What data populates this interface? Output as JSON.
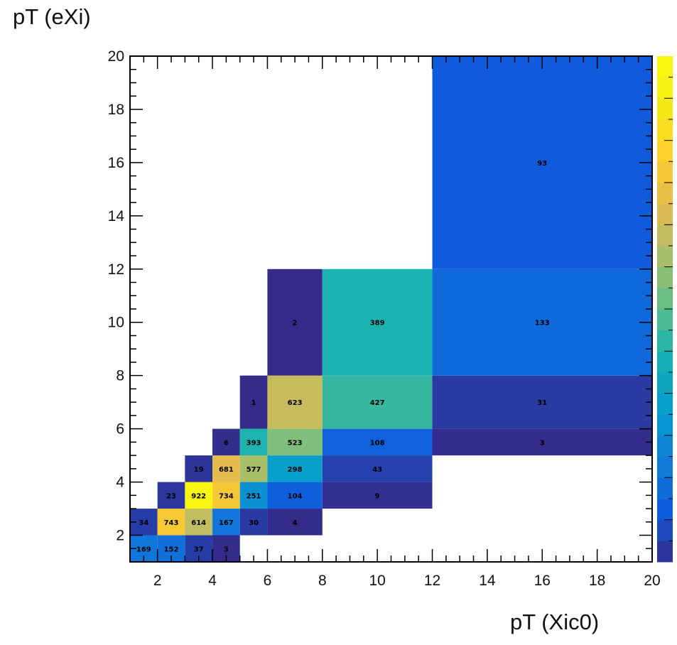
{
  "chart_data": {
    "type": "heatmap",
    "title": "",
    "xlabel": "pT (Xic0)",
    "ylabel": "pT (eXi)",
    "xlim": [
      1,
      20
    ],
    "ylim": [
      1,
      20
    ],
    "x_ticks": [
      2,
      4,
      6,
      8,
      10,
      12,
      14,
      16,
      18,
      20
    ],
    "y_ticks": [
      2,
      4,
      6,
      8,
      10,
      12,
      14,
      16,
      18,
      20
    ],
    "color_scale": {
      "min": 0,
      "max": 950,
      "palette": "parula"
    },
    "cells": [
      {
        "x0": 1,
        "x1": 2,
        "y0": 1,
        "y1": 2,
        "value": 169
      },
      {
        "x0": 2,
        "x1": 3,
        "y0": 1,
        "y1": 2,
        "value": 152
      },
      {
        "x0": 3,
        "x1": 4,
        "y0": 1,
        "y1": 2,
        "value": 37
      },
      {
        "x0": 4,
        "x1": 5,
        "y0": 1,
        "y1": 2,
        "value": 3
      },
      {
        "x0": 1,
        "x1": 2,
        "y0": 2,
        "y1": 3,
        "value": 34
      },
      {
        "x0": 2,
        "x1": 3,
        "y0": 2,
        "y1": 3,
        "value": 743
      },
      {
        "x0": 3,
        "x1": 4,
        "y0": 2,
        "y1": 3,
        "value": 614
      },
      {
        "x0": 4,
        "x1": 5,
        "y0": 2,
        "y1": 3,
        "value": 167
      },
      {
        "x0": 5,
        "x1": 6,
        "y0": 2,
        "y1": 3,
        "value": 30
      },
      {
        "x0": 6,
        "x1": 8,
        "y0": 2,
        "y1": 3,
        "value": 4
      },
      {
        "x0": 2,
        "x1": 3,
        "y0": 3,
        "y1": 4,
        "value": 23
      },
      {
        "x0": 3,
        "x1": 4,
        "y0": 3,
        "y1": 4,
        "value": 922
      },
      {
        "x0": 4,
        "x1": 5,
        "y0": 3,
        "y1": 4,
        "value": 734
      },
      {
        "x0": 5,
        "x1": 6,
        "y0": 3,
        "y1": 4,
        "value": 251
      },
      {
        "x0": 6,
        "x1": 8,
        "y0": 3,
        "y1": 4,
        "value": 104
      },
      {
        "x0": 8,
        "x1": 12,
        "y0": 3,
        "y1": 4,
        "value": 9
      },
      {
        "x0": 3,
        "x1": 4,
        "y0": 4,
        "y1": 5,
        "value": 19
      },
      {
        "x0": 4,
        "x1": 5,
        "y0": 4,
        "y1": 5,
        "value": 681
      },
      {
        "x0": 5,
        "x1": 6,
        "y0": 4,
        "y1": 5,
        "value": 577
      },
      {
        "x0": 6,
        "x1": 8,
        "y0": 4,
        "y1": 5,
        "value": 298
      },
      {
        "x0": 8,
        "x1": 12,
        "y0": 4,
        "y1": 5,
        "value": 43
      },
      {
        "x0": 4,
        "x1": 5,
        "y0": 5,
        "y1": 6,
        "value": 6
      },
      {
        "x0": 5,
        "x1": 6,
        "y0": 5,
        "y1": 6,
        "value": 393
      },
      {
        "x0": 6,
        "x1": 8,
        "y0": 5,
        "y1": 6,
        "value": 523
      },
      {
        "x0": 8,
        "x1": 12,
        "y0": 5,
        "y1": 6,
        "value": 108
      },
      {
        "x0": 12,
        "x1": 20,
        "y0": 5,
        "y1": 6,
        "value": 3
      },
      {
        "x0": 5,
        "x1": 6,
        "y0": 6,
        "y1": 8,
        "value": 1
      },
      {
        "x0": 6,
        "x1": 8,
        "y0": 6,
        "y1": 8,
        "value": 623
      },
      {
        "x0": 8,
        "x1": 12,
        "y0": 6,
        "y1": 8,
        "value": 427
      },
      {
        "x0": 12,
        "x1": 20,
        "y0": 6,
        "y1": 8,
        "value": 31
      },
      {
        "x0": 6,
        "x1": 8,
        "y0": 8,
        "y1": 12,
        "value": 2
      },
      {
        "x0": 8,
        "x1": 12,
        "y0": 8,
        "y1": 12,
        "value": 389
      },
      {
        "x0": 12,
        "x1": 20,
        "y0": 8,
        "y1": 12,
        "value": 133
      },
      {
        "x0": 12,
        "x1": 20,
        "y0": 12,
        "y1": 20,
        "value": 93
      }
    ]
  }
}
